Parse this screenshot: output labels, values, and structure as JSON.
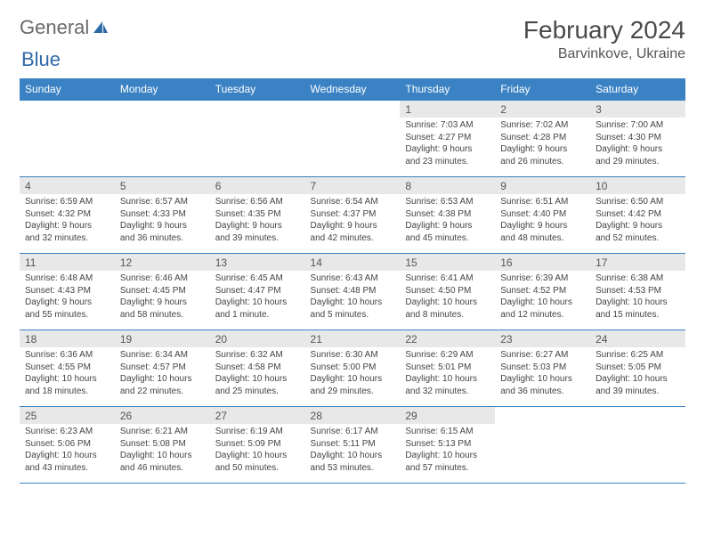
{
  "brand": {
    "part1": "General",
    "part2": "Blue"
  },
  "title": "February 2024",
  "location": "Barvinkove, Ukraine",
  "colors": {
    "header_bg": "#3b82c4",
    "header_fg": "#ffffff",
    "daynum_bg": "#e8e8e8",
    "border": "#3b82c4",
    "logo_gray": "#6a6a6a",
    "logo_blue": "#2f6aa8"
  },
  "typography": {
    "title_fontsize": 28,
    "location_fontsize": 16,
    "dayhead_fontsize": 12,
    "body_fontsize": 10
  },
  "day_headers": [
    "Sunday",
    "Monday",
    "Tuesday",
    "Wednesday",
    "Thursday",
    "Friday",
    "Saturday"
  ],
  "weeks": [
    [
      null,
      null,
      null,
      null,
      {
        "n": "1",
        "sunrise": "Sunrise: 7:03 AM",
        "sunset": "Sunset: 4:27 PM",
        "day1": "Daylight: 9 hours",
        "day2": "and 23 minutes."
      },
      {
        "n": "2",
        "sunrise": "Sunrise: 7:02 AM",
        "sunset": "Sunset: 4:28 PM",
        "day1": "Daylight: 9 hours",
        "day2": "and 26 minutes."
      },
      {
        "n": "3",
        "sunrise": "Sunrise: 7:00 AM",
        "sunset": "Sunset: 4:30 PM",
        "day1": "Daylight: 9 hours",
        "day2": "and 29 minutes."
      }
    ],
    [
      {
        "n": "4",
        "sunrise": "Sunrise: 6:59 AM",
        "sunset": "Sunset: 4:32 PM",
        "day1": "Daylight: 9 hours",
        "day2": "and 32 minutes."
      },
      {
        "n": "5",
        "sunrise": "Sunrise: 6:57 AM",
        "sunset": "Sunset: 4:33 PM",
        "day1": "Daylight: 9 hours",
        "day2": "and 36 minutes."
      },
      {
        "n": "6",
        "sunrise": "Sunrise: 6:56 AM",
        "sunset": "Sunset: 4:35 PM",
        "day1": "Daylight: 9 hours",
        "day2": "and 39 minutes."
      },
      {
        "n": "7",
        "sunrise": "Sunrise: 6:54 AM",
        "sunset": "Sunset: 4:37 PM",
        "day1": "Daylight: 9 hours",
        "day2": "and 42 minutes."
      },
      {
        "n": "8",
        "sunrise": "Sunrise: 6:53 AM",
        "sunset": "Sunset: 4:38 PM",
        "day1": "Daylight: 9 hours",
        "day2": "and 45 minutes."
      },
      {
        "n": "9",
        "sunrise": "Sunrise: 6:51 AM",
        "sunset": "Sunset: 4:40 PM",
        "day1": "Daylight: 9 hours",
        "day2": "and 48 minutes."
      },
      {
        "n": "10",
        "sunrise": "Sunrise: 6:50 AM",
        "sunset": "Sunset: 4:42 PM",
        "day1": "Daylight: 9 hours",
        "day2": "and 52 minutes."
      }
    ],
    [
      {
        "n": "11",
        "sunrise": "Sunrise: 6:48 AM",
        "sunset": "Sunset: 4:43 PM",
        "day1": "Daylight: 9 hours",
        "day2": "and 55 minutes."
      },
      {
        "n": "12",
        "sunrise": "Sunrise: 6:46 AM",
        "sunset": "Sunset: 4:45 PM",
        "day1": "Daylight: 9 hours",
        "day2": "and 58 minutes."
      },
      {
        "n": "13",
        "sunrise": "Sunrise: 6:45 AM",
        "sunset": "Sunset: 4:47 PM",
        "day1": "Daylight: 10 hours",
        "day2": "and 1 minute."
      },
      {
        "n": "14",
        "sunrise": "Sunrise: 6:43 AM",
        "sunset": "Sunset: 4:48 PM",
        "day1": "Daylight: 10 hours",
        "day2": "and 5 minutes."
      },
      {
        "n": "15",
        "sunrise": "Sunrise: 6:41 AM",
        "sunset": "Sunset: 4:50 PM",
        "day1": "Daylight: 10 hours",
        "day2": "and 8 minutes."
      },
      {
        "n": "16",
        "sunrise": "Sunrise: 6:39 AM",
        "sunset": "Sunset: 4:52 PM",
        "day1": "Daylight: 10 hours",
        "day2": "and 12 minutes."
      },
      {
        "n": "17",
        "sunrise": "Sunrise: 6:38 AM",
        "sunset": "Sunset: 4:53 PM",
        "day1": "Daylight: 10 hours",
        "day2": "and 15 minutes."
      }
    ],
    [
      {
        "n": "18",
        "sunrise": "Sunrise: 6:36 AM",
        "sunset": "Sunset: 4:55 PM",
        "day1": "Daylight: 10 hours",
        "day2": "and 18 minutes."
      },
      {
        "n": "19",
        "sunrise": "Sunrise: 6:34 AM",
        "sunset": "Sunset: 4:57 PM",
        "day1": "Daylight: 10 hours",
        "day2": "and 22 minutes."
      },
      {
        "n": "20",
        "sunrise": "Sunrise: 6:32 AM",
        "sunset": "Sunset: 4:58 PM",
        "day1": "Daylight: 10 hours",
        "day2": "and 25 minutes."
      },
      {
        "n": "21",
        "sunrise": "Sunrise: 6:30 AM",
        "sunset": "Sunset: 5:00 PM",
        "day1": "Daylight: 10 hours",
        "day2": "and 29 minutes."
      },
      {
        "n": "22",
        "sunrise": "Sunrise: 6:29 AM",
        "sunset": "Sunset: 5:01 PM",
        "day1": "Daylight: 10 hours",
        "day2": "and 32 minutes."
      },
      {
        "n": "23",
        "sunrise": "Sunrise: 6:27 AM",
        "sunset": "Sunset: 5:03 PM",
        "day1": "Daylight: 10 hours",
        "day2": "and 36 minutes."
      },
      {
        "n": "24",
        "sunrise": "Sunrise: 6:25 AM",
        "sunset": "Sunset: 5:05 PM",
        "day1": "Daylight: 10 hours",
        "day2": "and 39 minutes."
      }
    ],
    [
      {
        "n": "25",
        "sunrise": "Sunrise: 6:23 AM",
        "sunset": "Sunset: 5:06 PM",
        "day1": "Daylight: 10 hours",
        "day2": "and 43 minutes."
      },
      {
        "n": "26",
        "sunrise": "Sunrise: 6:21 AM",
        "sunset": "Sunset: 5:08 PM",
        "day1": "Daylight: 10 hours",
        "day2": "and 46 minutes."
      },
      {
        "n": "27",
        "sunrise": "Sunrise: 6:19 AM",
        "sunset": "Sunset: 5:09 PM",
        "day1": "Daylight: 10 hours",
        "day2": "and 50 minutes."
      },
      {
        "n": "28",
        "sunrise": "Sunrise: 6:17 AM",
        "sunset": "Sunset: 5:11 PM",
        "day1": "Daylight: 10 hours",
        "day2": "and 53 minutes."
      },
      {
        "n": "29",
        "sunrise": "Sunrise: 6:15 AM",
        "sunset": "Sunset: 5:13 PM",
        "day1": "Daylight: 10 hours",
        "day2": "and 57 minutes."
      },
      null,
      null
    ]
  ]
}
